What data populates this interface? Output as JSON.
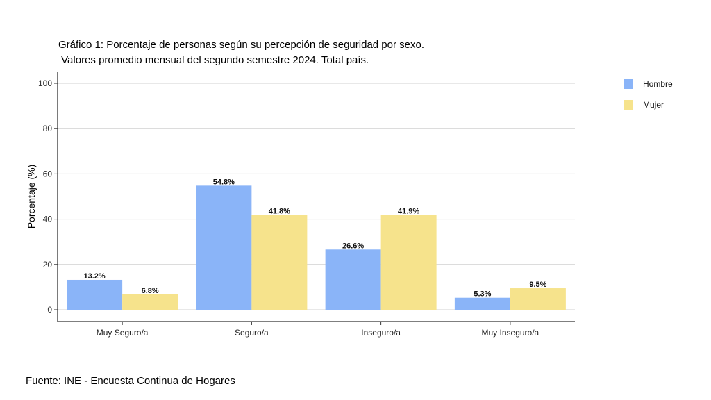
{
  "chart_data": {
    "type": "bar",
    "title": "Gráfico 1: Porcentaje de personas según su percepción de seguridad por sexo.",
    "subtitle": " Valores promedio mensual del segundo semestre 2024. Total país.",
    "xlabel": "",
    "ylabel": "Porcentaje (%)",
    "ylim": [
      0,
      100
    ],
    "yticks": [
      0,
      20,
      40,
      60,
      80,
      100
    ],
    "categories": [
      "Muy Seguro/a",
      "Seguro/a",
      "Inseguro/a",
      "Muy Inseguro/a"
    ],
    "series": [
      {
        "name": "Hombre",
        "color": "#8ab4f8",
        "values": [
          13.2,
          54.8,
          26.6,
          5.3
        ],
        "labels": [
          "13.2%",
          "54.8%",
          "26.6%",
          "5.3%"
        ]
      },
      {
        "name": "Mujer",
        "color": "#f6e38c",
        "values": [
          6.8,
          41.8,
          41.9,
          9.5
        ],
        "labels": [
          "6.8%",
          "41.8%",
          "41.9%",
          "9.5%"
        ]
      }
    ],
    "grid": true,
    "legend_position": "right"
  },
  "source": "Fuente: INE - Encuesta Continua de Hogares"
}
